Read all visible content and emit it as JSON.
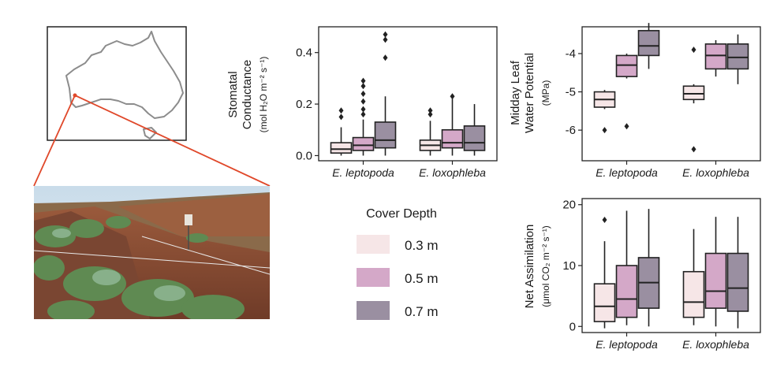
{
  "colors": {
    "cover_0_3": "#f6e6e7",
    "cover_0_5": "#d4a8c8",
    "cover_0_7": "#9a8fa1",
    "locator_line": "#e0482a",
    "outline": "#222222"
  },
  "map_icon": "australia-outline-map",
  "photo_icon": "field-site-photo-with-shrubs",
  "legend": {
    "title": "Cover Depth",
    "items": [
      {
        "label": "0.3 m",
        "color_key": "cover_0_3"
      },
      {
        "label": "0.5 m",
        "color_key": "cover_0_5"
      },
      {
        "label": "0.7 m",
        "color_key": "cover_0_7"
      }
    ]
  },
  "chart_data": [
    {
      "type": "box",
      "id": "stomatal",
      "ylabel_main": [
        "Stomatal",
        "Conductance"
      ],
      "ylabel_units": "(mol H₂O m⁻² s⁻¹)",
      "ylim": [
        -0.02,
        0.5
      ],
      "yticks": [
        0.0,
        0.2,
        0.4
      ],
      "ytick_labels": [
        "0.0",
        "0.2",
        "0.4"
      ],
      "categories": [
        "E. leptopoda",
        "E. loxophleba"
      ],
      "series": [
        {
          "name": "0.3 m",
          "boxes": [
            {
              "min": 0.0,
              "q1": 0.01,
              "median": 0.025,
              "q3": 0.05,
              "max": 0.11,
              "outliers": [
                0.175,
                0.15
              ]
            },
            {
              "min": 0.0,
              "q1": 0.02,
              "median": 0.04,
              "q3": 0.06,
              "max": 0.135,
              "outliers": [
                0.175,
                0.16
              ]
            }
          ]
        },
        {
          "name": "0.5 m",
          "boxes": [
            {
              "min": 0.0,
              "q1": 0.02,
              "median": 0.04,
              "q3": 0.07,
              "max": 0.14,
              "outliers": [
                0.16,
                0.18,
                0.21,
                0.24,
                0.27,
                0.29
              ]
            },
            {
              "min": 0.0,
              "q1": 0.03,
              "median": 0.05,
              "q3": 0.1,
              "max": 0.22,
              "outliers": [
                0.23
              ]
            }
          ]
        },
        {
          "name": "0.7 m",
          "boxes": [
            {
              "min": 0.0,
              "q1": 0.03,
              "median": 0.06,
              "q3": 0.13,
              "max": 0.23,
              "outliers": [
                0.38,
                0.45,
                0.47
              ]
            },
            {
              "min": 0.0,
              "q1": 0.02,
              "median": 0.05,
              "q3": 0.115,
              "max": 0.2,
              "outliers": []
            }
          ]
        }
      ]
    },
    {
      "type": "box",
      "id": "water_potential",
      "ylabel_main": [
        "Midday Leaf",
        "Water Potential"
      ],
      "ylabel_units": "(MPa)",
      "ylim": [
        -6.8,
        -3.3
      ],
      "yticks": [
        -6,
        -5,
        -4
      ],
      "ytick_labels": [
        "-6",
        "-5",
        "-4"
      ],
      "categories": [
        "E. leptopoda",
        "E. loxophleba"
      ],
      "series": [
        {
          "name": "0.3 m",
          "boxes": [
            {
              "min": -5.45,
              "q1": -5.4,
              "median": -5.2,
              "q3": -5.0,
              "max": -4.95,
              "outliers": [
                -6.0
              ]
            },
            {
              "min": -5.3,
              "q1": -5.2,
              "median": -5.05,
              "q3": -4.85,
              "max": -4.8,
              "outliers": [
                -3.9,
                -6.5
              ]
            }
          ]
        },
        {
          "name": "0.5 m",
          "boxes": [
            {
              "min": -4.65,
              "q1": -4.6,
              "median": -4.3,
              "q3": -4.05,
              "max": -4.0,
              "outliers": [
                -5.9
              ]
            },
            {
              "min": -4.6,
              "q1": -4.4,
              "median": -4.05,
              "q3": -3.75,
              "max": -3.65,
              "outliers": []
            }
          ]
        },
        {
          "name": "0.7 m",
          "boxes": [
            {
              "min": -4.4,
              "q1": -4.05,
              "median": -3.8,
              "q3": -3.4,
              "max": -3.2,
              "outliers": []
            },
            {
              "min": -4.8,
              "q1": -4.4,
              "median": -4.1,
              "q3": -3.75,
              "max": -3.5,
              "outliers": []
            }
          ]
        }
      ]
    },
    {
      "type": "box",
      "id": "assimilation",
      "ylabel_main": [
        "Net Assimilation"
      ],
      "ylabel_units": "(μmol CO₂ m⁻² s⁻¹)",
      "ylim": [
        -1,
        21
      ],
      "yticks": [
        0,
        10,
        20
      ],
      "ytick_labels": [
        "0",
        "10",
        "20"
      ],
      "categories": [
        "E. leptopoda",
        "E. loxophleba"
      ],
      "series": [
        {
          "name": "0.3 m",
          "boxes": [
            {
              "min": -0.3,
              "q1": 0.8,
              "median": 3.3,
              "q3": 7.0,
              "max": 14.0,
              "outliers": [
                17.5
              ]
            },
            {
              "min": 0.2,
              "q1": 1.5,
              "median": 4.0,
              "q3": 9.0,
              "max": 16.0,
              "outliers": []
            }
          ]
        },
        {
          "name": "0.5 m",
          "boxes": [
            {
              "min": 0.2,
              "q1": 1.5,
              "median": 4.5,
              "q3": 10.0,
              "max": 19.0,
              "outliers": []
            },
            {
              "min": 0.0,
              "q1": 3.0,
              "median": 5.8,
              "q3": 12.0,
              "max": 18.0,
              "outliers": []
            }
          ]
        },
        {
          "name": "0.7 m",
          "boxes": [
            {
              "min": 0.0,
              "q1": 3.0,
              "median": 7.2,
              "q3": 11.3,
              "max": 19.3,
              "outliers": []
            },
            {
              "min": -0.3,
              "q1": 2.5,
              "median": 6.3,
              "q3": 12.0,
              "max": 18.0,
              "outliers": []
            }
          ]
        }
      ]
    }
  ]
}
